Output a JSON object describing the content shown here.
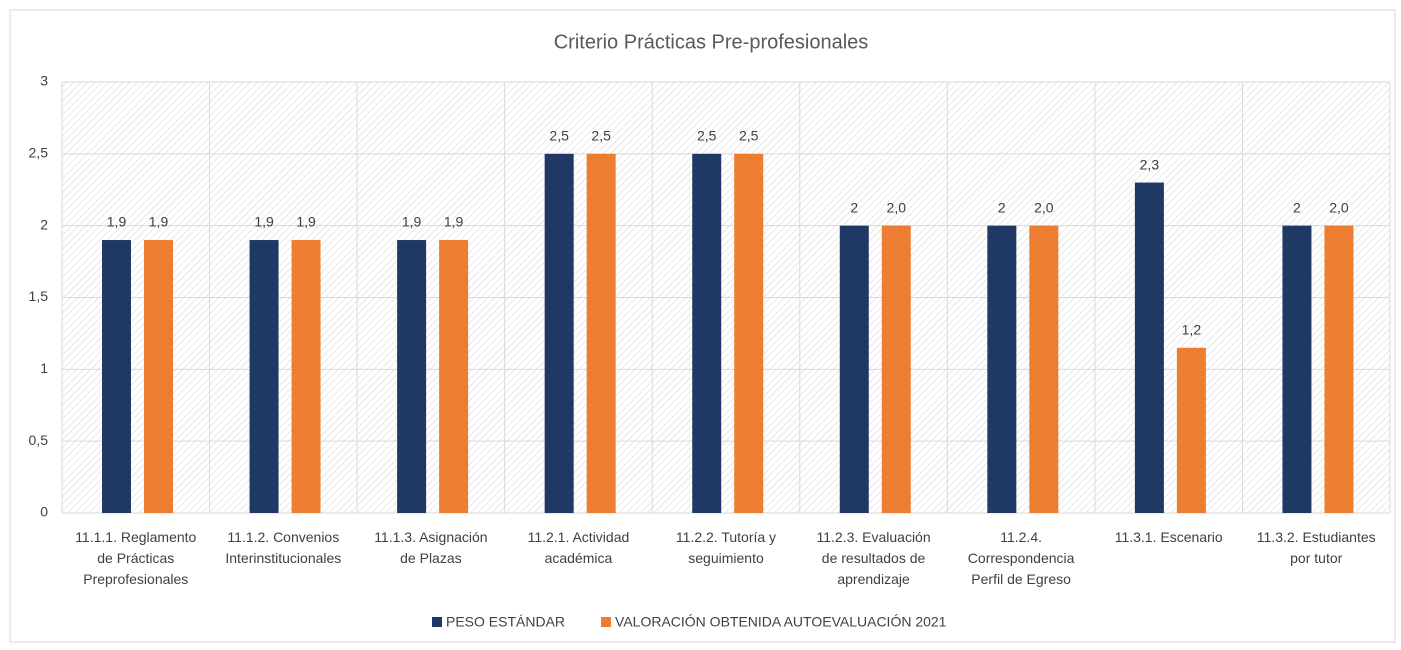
{
  "chart_data": {
    "type": "bar",
    "title": "Criterio Prácticas Pre-profesionales",
    "categories": [
      "11.1.1. Reglamento\nde Prácticas\nPreprofesionales",
      "11.1.2. Convenios\nInterinstitucionales",
      "11.1.3. Asignación\nde Plazas",
      "11.2.1. Actividad\nacadémica",
      "11.2.2. Tutoría y\nseguimiento",
      "11.2.3. Evaluación\nde resultados de\naprendizaje",
      "11.2.4.\nCorrespondencia\nPerfil de Egreso",
      "11.3.1. Escenario",
      "11.3.2. Estudiantes\npor tutor"
    ],
    "series": [
      {
        "name": "PESO ESTÁNDAR",
        "color": "#1f3864",
        "values": [
          1.9,
          1.9,
          1.9,
          2.5,
          2.5,
          2,
          2,
          2.3,
          2
        ],
        "value_labels": [
          "1,9",
          "1,9",
          "1,9",
          "2,5",
          "2,5",
          "2",
          "2",
          "2,3",
          "2"
        ]
      },
      {
        "name": "VALORACIÓN OBTENIDA AUTOEVALUACIÓN 2021",
        "color": "#ed7d31",
        "values": [
          1.9,
          1.9,
          1.9,
          2.5,
          2.5,
          2.0,
          2.0,
          1.15,
          2.0
        ],
        "value_labels": [
          "1,9",
          "1,9",
          "1,9",
          "2,5",
          "2,5",
          "2,0",
          "2,0",
          "1,2",
          "2,0"
        ]
      }
    ],
    "ylim": [
      0,
      3
    ],
    "yticks": [
      0,
      {
        "value": 0.5,
        "label": "0,5"
      },
      1,
      {
        "value": 1.5,
        "label": "1,5"
      },
      2,
      {
        "value": 2.5,
        "label": "2,5"
      },
      3
    ],
    "grid": true,
    "legend": "bottom"
  }
}
